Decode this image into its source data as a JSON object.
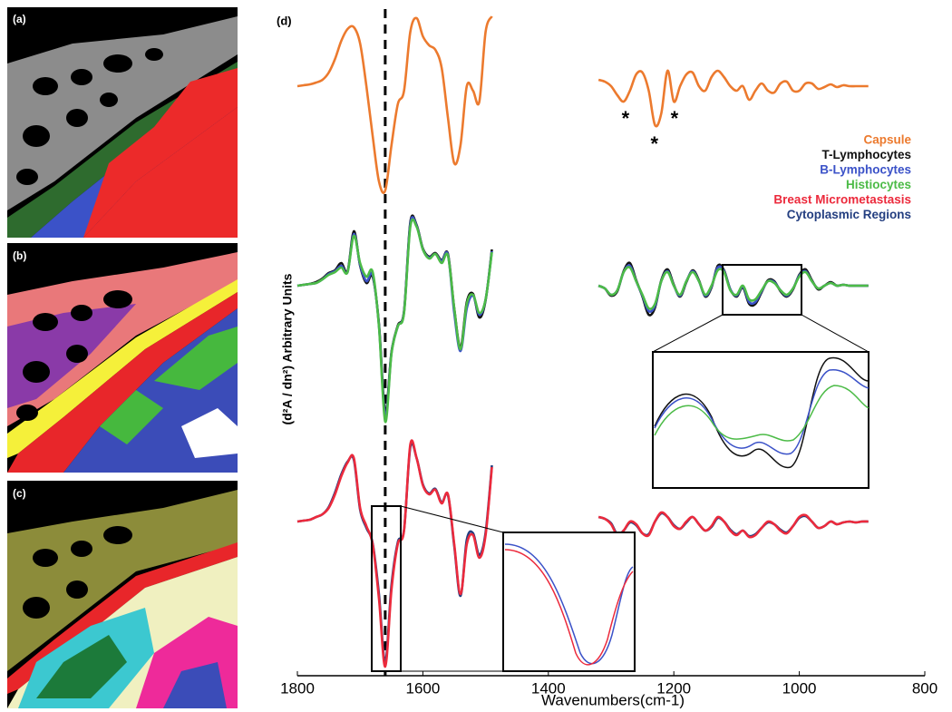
{
  "panels": [
    "(a)",
    "(b)",
    "(c)"
  ],
  "chart_data": {
    "type": "line",
    "label": "(d)",
    "xlabel": "Wavenumbers(cm-1)",
    "ylabel": "(d²A / dn²) Arbitrary Units",
    "xlim": [
      1800,
      800
    ],
    "xticks": [
      1800,
      1600,
      1400,
      1200,
      1000,
      800
    ],
    "ylim": [
      0,
      735
    ],
    "vline": 1660,
    "annotations": [
      {
        "text": "*",
        "x": 1277,
        "y": 621
      },
      {
        "text": "*",
        "x": 1231,
        "y": 593
      },
      {
        "text": "*",
        "x": 1199,
        "y": 621
      }
    ],
    "x": [
      1800,
      1790,
      1780,
      1770,
      1760,
      1750,
      1740,
      1730,
      1720,
      1710,
      1700,
      1690,
      1680,
      1670,
      1660,
      1650,
      1640,
      1630,
      1620,
      1610,
      1600,
      1590,
      1580,
      1570,
      1560,
      1550,
      1540,
      1530,
      1520,
      1510,
      1500,
      1490,
      1400,
      1320,
      1310,
      1300,
      1290,
      1280,
      1270,
      1260,
      1250,
      1240,
      1230,
      1220,
      1210,
      1200,
      1190,
      1180,
      1170,
      1160,
      1150,
      1140,
      1130,
      1120,
      1110,
      1100,
      1090,
      1080,
      1070,
      1060,
      1050,
      1040,
      1030,
      1020,
      1010,
      1000,
      990,
      980,
      970,
      960,
      950,
      940,
      930,
      920,
      910,
      900,
      890
    ],
    "series": [
      {
        "name": "Capsule",
        "color": "#ec7a2e",
        "values": [
          650,
          651,
          652,
          654,
          657,
          665,
          680,
          700,
          713,
          715,
          697,
          650,
          595,
          545,
          535,
          585,
          630,
          645,
          710,
          725,
          705,
          695,
          690,
          670,
          615,
          565,
          585,
          650,
          645,
          633,
          710,
          727,
          null,
          657,
          655,
          650,
          640,
          633,
          645,
          663,
          665,
          645,
          607,
          620,
          667,
          633,
          650,
          663,
          665,
          650,
          645,
          660,
          667,
          660,
          650,
          645,
          650,
          635,
          645,
          653,
          645,
          643,
          653,
          655,
          645,
          645,
          653,
          653,
          647,
          649,
          652,
          649,
          651,
          650,
          650,
          650,
          650
        ]
      },
      {
        "name": "T-Lymphocytes",
        "color": "#111111",
        "values": [
          430,
          431,
          432,
          434,
          438,
          444,
          447,
          455,
          446,
          490,
          452,
          433,
          440,
          388,
          290,
          357,
          386,
          402,
          500,
          497,
          471,
          462,
          466,
          458,
          465,
          405,
          362,
          412,
          421,
          395,
          414,
          470,
          null,
          430,
          427,
          419,
          424,
          446,
          455,
          436,
          418,
          398,
          406,
          436,
          448,
          431,
          418,
          434,
          447,
          436,
          418,
          428,
          452,
          447,
          426,
          418,
          428,
          410,
          410,
          423,
          436,
          435,
          424,
          418,
          426,
          442,
          448,
          436,
          426,
          430,
          434,
          430,
          431,
          430,
          430,
          430,
          430
        ]
      },
      {
        "name": "B-Lymphocytes",
        "color": "#3b52c8",
        "values": [
          430,
          431,
          432,
          433,
          437,
          443,
          446,
          452,
          445,
          487,
          453,
          435,
          442,
          386,
          285,
          356,
          385,
          401,
          498,
          496,
          470,
          461,
          465,
          457,
          464,
          400,
          358,
          405,
          419,
          398,
          415,
          468,
          null,
          430,
          427,
          420,
          425,
          445,
          452,
          435,
          419,
          402,
          408,
          435,
          446,
          430,
          419,
          435,
          446,
          435,
          419,
          429,
          450,
          446,
          426,
          419,
          429,
          412,
          412,
          424,
          435,
          434,
          425,
          419,
          427,
          441,
          446,
          435,
          427,
          430,
          433,
          430,
          431,
          430,
          430,
          430,
          430
        ]
      },
      {
        "name": "Histiocytes",
        "color": "#4cbb47",
        "values": [
          430,
          431,
          432,
          433,
          437,
          442,
          445,
          450,
          445,
          485,
          455,
          440,
          445,
          385,
          280,
          355,
          385,
          400,
          495,
          495,
          470,
          460,
          465,
          455,
          463,
          405,
          360,
          410,
          420,
          400,
          415,
          467,
          null,
          430,
          427,
          420,
          425,
          445,
          450,
          435,
          420,
          405,
          410,
          435,
          445,
          430,
          420,
          435,
          445,
          435,
          420,
          430,
          447,
          445,
          425,
          420,
          430,
          415,
          415,
          425,
          435,
          433,
          425,
          420,
          427,
          440,
          445,
          435,
          427,
          430,
          433,
          430,
          431,
          430,
          430,
          430,
          430
        ]
      },
      {
        "name": "Cytoplasmic Regions",
        "color": "#233e80",
        "values": [
          170,
          171,
          172,
          175,
          178,
          186,
          202,
          222,
          236,
          238,
          183,
          163,
          146,
          90,
          15,
          100,
          147,
          161,
          252,
          240,
          211,
          201,
          206,
          191,
          199,
          143,
          88,
          150,
          157,
          133,
          158,
          232,
          null,
          175,
          173,
          168,
          156,
          160,
          169,
          166,
          157,
          156,
          170,
          179,
          175,
          166,
          162,
          169,
          175,
          167,
          160,
          164,
          174,
          170,
          161,
          156,
          160,
          154,
          156,
          163,
          169,
          167,
          161,
          158,
          165,
          174,
          176,
          170,
          163,
          165,
          170,
          167,
          169,
          170,
          169,
          170,
          170
        ]
      },
      {
        "name": "Breast Micrometastasis",
        "color": "#ec2a3c",
        "values": [
          170,
          171,
          172,
          175,
          178,
          185,
          200,
          220,
          235,
          240,
          185,
          165,
          145,
          85,
          10,
          95,
          145,
          160,
          255,
          240,
          210,
          200,
          205,
          190,
          200,
          145,
          90,
          145,
          155,
          130,
          155,
          230,
          null,
          175,
          173,
          167,
          155,
          160,
          170,
          167,
          157,
          155,
          170,
          180,
          175,
          165,
          162,
          170,
          175,
          167,
          160,
          165,
          175,
          170,
          160,
          155,
          160,
          153,
          155,
          163,
          170,
          167,
          160,
          157,
          165,
          175,
          177,
          170,
          163,
          165,
          170,
          167,
          169,
          170,
          169,
          170,
          170
        ]
      }
    ],
    "legend_order": [
      0,
      1,
      2,
      3,
      5,
      4
    ]
  }
}
